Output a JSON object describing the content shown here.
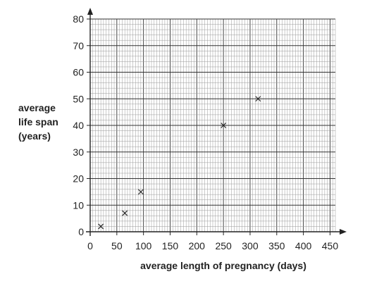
{
  "chart_data": {
    "type": "scatter",
    "title": "",
    "xlabel": "average length of pregnancy (days)",
    "ylabel": [
      "average",
      "life span",
      "(years)"
    ],
    "xlim": [
      0,
      460
    ],
    "ylim": [
      0,
      80
    ],
    "x_ticks": [
      0,
      50,
      100,
      150,
      200,
      250,
      300,
      350,
      400,
      450
    ],
    "y_ticks": [
      0,
      10,
      20,
      30,
      40,
      50,
      60,
      70,
      80
    ],
    "grid": true,
    "marker": "x",
    "points": [
      {
        "x": 20,
        "y": 2
      },
      {
        "x": 65,
        "y": 7
      },
      {
        "x": 95,
        "y": 15
      },
      {
        "x": 250,
        "y": 40
      },
      {
        "x": 315,
        "y": 50
      }
    ],
    "colors": {
      "ink": "#222222",
      "grid_major": "#333333",
      "grid_minor": "#9a9a9a"
    }
  }
}
